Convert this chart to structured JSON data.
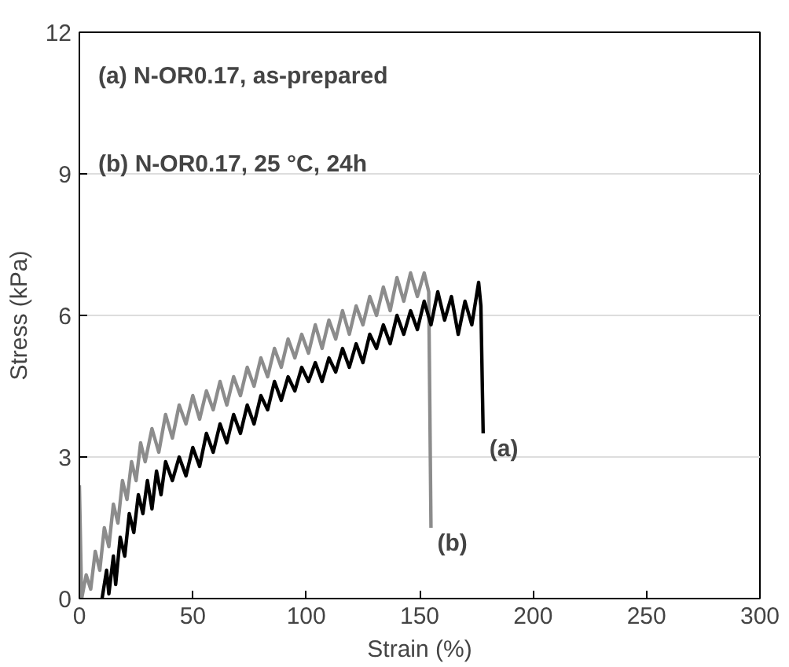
{
  "chart_data": {
    "type": "line",
    "xlabel": "Strain (%)",
    "ylabel": "Stress (kPa)",
    "xlim": [
      0,
      300
    ],
    "xticks": [
      0,
      50,
      100,
      150,
      200,
      250,
      300
    ],
    "ylim": [
      0,
      12
    ],
    "yticks": [
      0,
      3,
      6,
      9,
      12
    ],
    "grid": "y",
    "marker": "none",
    "line_style": "solid",
    "annotations": [
      "(a) N-OR0.17, as-prepared",
      "(b) N-OR0.17, 25 °C, 24h"
    ],
    "series": [
      {
        "name": "(b)",
        "color": "#8c8c8c",
        "x": [
          0,
          1,
          3,
          5,
          7,
          9,
          11,
          13,
          15,
          17,
          19,
          21,
          23,
          25,
          27,
          29,
          32,
          35,
          38,
          41,
          44,
          47,
          50,
          53,
          56,
          59,
          62,
          65,
          68,
          71,
          74,
          77,
          80,
          83,
          86,
          89,
          92,
          95,
          98,
          101,
          104,
          107,
          110,
          113,
          116,
          119,
          122,
          125,
          128,
          131,
          134,
          137,
          140,
          143,
          146,
          149,
          152,
          154,
          155
        ],
        "values": [
          2.4,
          0,
          0.5,
          0.2,
          1.0,
          0.6,
          1.5,
          1.1,
          2.0,
          1.6,
          2.5,
          2.1,
          2.9,
          2.5,
          3.3,
          2.9,
          3.6,
          3.1,
          3.9,
          3.4,
          4.1,
          3.7,
          4.3,
          3.8,
          4.4,
          4.0,
          4.6,
          4.1,
          4.7,
          4.3,
          4.9,
          4.5,
          5.1,
          4.7,
          5.3,
          4.9,
          5.5,
          5.1,
          5.6,
          5.2,
          5.8,
          5.3,
          5.9,
          5.5,
          6.1,
          5.6,
          6.2,
          5.8,
          6.4,
          6.0,
          6.6,
          6.1,
          6.8,
          6.3,
          6.9,
          6.4,
          6.9,
          6.5,
          1.5
        ]
      },
      {
        "name": "(a)",
        "color": "#000000",
        "x": [
          10,
          12,
          13,
          15,
          16,
          18,
          20,
          22,
          24,
          26,
          28,
          30,
          32,
          34,
          36,
          38,
          41,
          44,
          47,
          50,
          53,
          56,
          59,
          62,
          65,
          68,
          71,
          74,
          77,
          80,
          83,
          86,
          89,
          92,
          95,
          98,
          101,
          104,
          107,
          110,
          113,
          116,
          119,
          122,
          125,
          128,
          131,
          134,
          137,
          140,
          143,
          146,
          149,
          152,
          155,
          158,
          161,
          164,
          167,
          170,
          173,
          176,
          177,
          178
        ],
        "values": [
          0,
          0.6,
          0.1,
          0.9,
          0.3,
          1.3,
          0.9,
          1.8,
          1.4,
          2.2,
          1.8,
          2.5,
          1.9,
          2.7,
          2.2,
          2.9,
          2.5,
          3.0,
          2.6,
          3.2,
          2.8,
          3.5,
          3.1,
          3.7,
          3.3,
          3.9,
          3.5,
          4.1,
          3.7,
          4.3,
          4.0,
          4.6,
          4.2,
          4.7,
          4.4,
          4.9,
          4.6,
          5.0,
          4.6,
          5.1,
          4.8,
          5.3,
          4.9,
          5.4,
          5.0,
          5.6,
          5.3,
          5.8,
          5.4,
          6.0,
          5.6,
          6.1,
          5.7,
          6.3,
          5.8,
          6.5,
          5.9,
          6.4,
          5.6,
          6.3,
          5.8,
          6.7,
          6.2,
          3.5
        ]
      }
    ]
  }
}
